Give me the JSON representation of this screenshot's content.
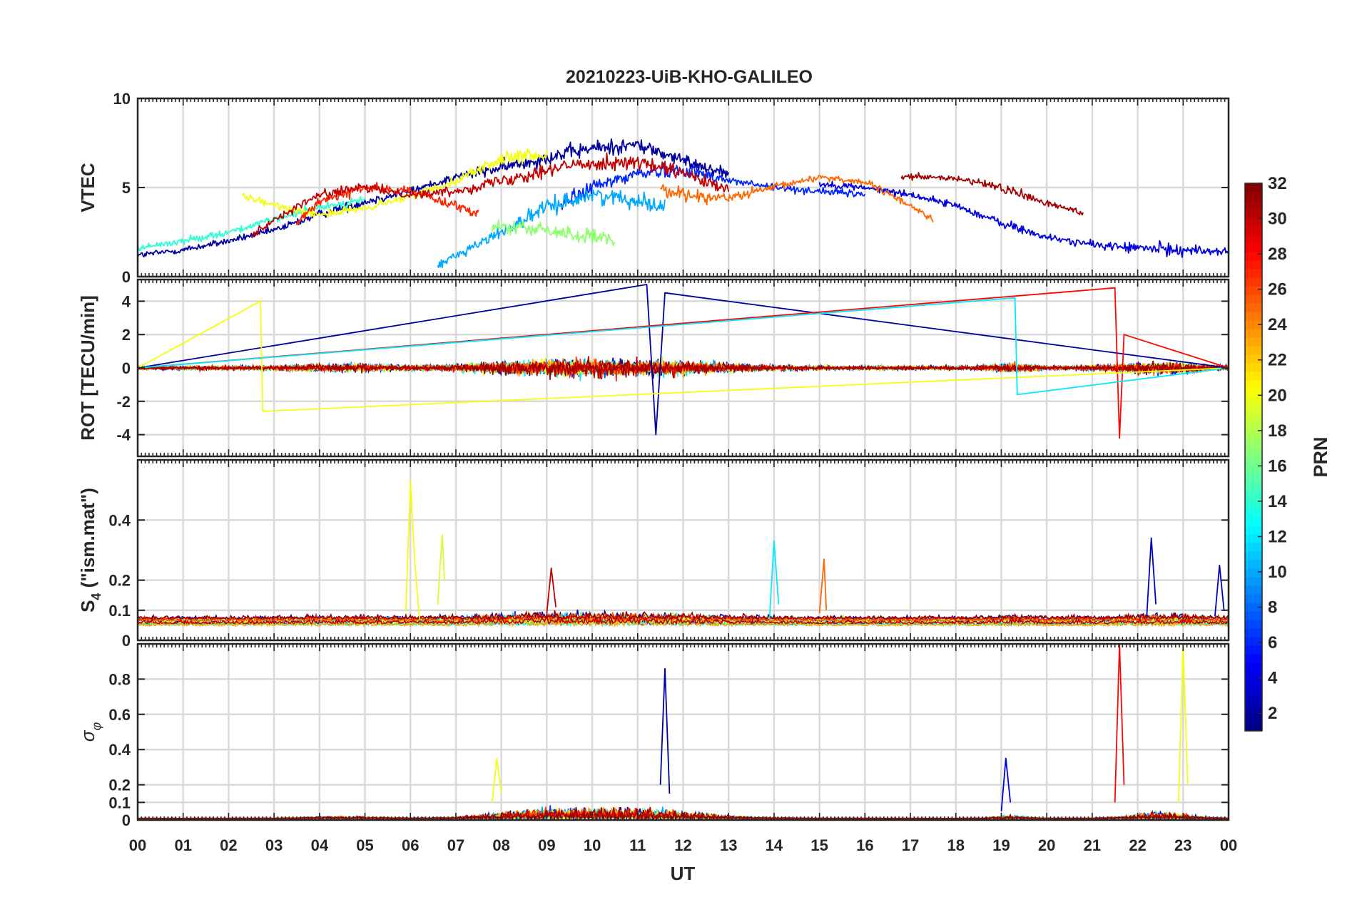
{
  "figure": {
    "title": "20210223-UiB-KHO-GALILEO",
    "xlabel": "UT",
    "x_tick_labels": [
      "00",
      "01",
      "02",
      "03",
      "04",
      "05",
      "06",
      "07",
      "08",
      "09",
      "10",
      "11",
      "12",
      "13",
      "14",
      "15",
      "16",
      "17",
      "18",
      "19",
      "20",
      "21",
      "22",
      "23",
      "00"
    ]
  },
  "colorbar": {
    "label": "PRN",
    "colormap": "jet",
    "range": [
      1,
      32
    ],
    "ticks": [
      2,
      4,
      6,
      8,
      10,
      12,
      14,
      16,
      18,
      20,
      22,
      24,
      26,
      28,
      30,
      32
    ],
    "tick_labels": [
      "2",
      "4",
      "6",
      "8",
      "10",
      "12",
      "14",
      "16",
      "18",
      "20",
      "22",
      "24",
      "26",
      "28",
      "30",
      "32"
    ]
  },
  "chart_data": [
    {
      "type": "line",
      "panel": "VTEC",
      "ylabel": "VTEC",
      "xlim": [
        0,
        24
      ],
      "ylim": [
        0,
        10
      ],
      "y_ticks": [
        0,
        5,
        10
      ],
      "y_tick_labels": [
        "0",
        "5",
        "10"
      ],
      "grid": true,
      "series": [
        {
          "prn": 2,
          "x": [
            0,
            1,
            2,
            3,
            4,
            5,
            6,
            7,
            8,
            9,
            10,
            11,
            12,
            13
          ],
          "y": [
            1.2,
            1.5,
            2.0,
            2.6,
            3.5,
            4.2,
            4.8,
            5.6,
            6.1,
            6.7,
            7.2,
            7.4,
            6.5,
            5.8
          ]
        },
        {
          "prn": 4,
          "x": [
            15,
            16,
            17,
            18,
            19,
            20,
            21,
            22,
            23,
            24
          ],
          "y": [
            5.2,
            5.0,
            4.6,
            4.0,
            3.0,
            2.2,
            1.8,
            1.6,
            1.5,
            1.4
          ]
        },
        {
          "prn": 6,
          "x": [
            9.3,
            10,
            11,
            12,
            13,
            14,
            15,
            16
          ],
          "y": [
            4.0,
            5.0,
            5.8,
            6.0,
            5.4,
            5.0,
            4.8,
            4.6
          ]
        },
        {
          "prn": 10,
          "x": [
            6.6,
            7,
            8,
            9,
            10,
            11,
            11.6
          ],
          "y": [
            0.6,
            1.2,
            2.5,
            3.9,
            4.6,
            4.3,
            3.9
          ]
        },
        {
          "prn": 14,
          "x": [
            0,
            1,
            2,
            3,
            4,
            5
          ],
          "y": [
            1.6,
            2.0,
            2.5,
            3.2,
            3.9,
            4.3
          ]
        },
        {
          "prn": 17,
          "x": [
            7.8,
            8.5,
            9,
            10,
            10.5
          ],
          "y": [
            2.8,
            2.7,
            2.6,
            2.2,
            2.0
          ]
        },
        {
          "prn": 20,
          "x": [
            2.3,
            3,
            4,
            5,
            6,
            7,
            8,
            9
          ],
          "y": [
            4.5,
            4.0,
            3.5,
            3.8,
            4.5,
            5.4,
            6.6,
            6.8
          ]
        },
        {
          "prn": 25,
          "x": [
            11.5,
            12,
            13,
            14,
            15,
            16,
            17,
            17.5
          ],
          "y": [
            5.0,
            4.6,
            4.4,
            5.0,
            5.6,
            5.3,
            4.0,
            3.2
          ]
        },
        {
          "prn": 27,
          "x": [
            3.5,
            4,
            5,
            6,
            7,
            7.5
          ],
          "y": [
            3.0,
            4.2,
            5.0,
            4.8,
            4.0,
            3.6
          ]
        },
        {
          "prn": 30,
          "x": [
            2.5,
            3,
            4,
            5,
            6,
            7,
            8,
            9,
            10,
            11,
            12,
            13
          ],
          "y": [
            2.3,
            3.2,
            4.6,
            5.0,
            4.6,
            4.8,
            5.4,
            6.0,
            6.4,
            6.4,
            5.8,
            4.8
          ]
        },
        {
          "prn": 31,
          "x": [
            16.8,
            17,
            18,
            19,
            20,
            20.8
          ],
          "y": [
            5.6,
            5.6,
            5.5,
            5.0,
            4.1,
            3.6
          ]
        }
      ]
    },
    {
      "type": "line",
      "panel": "ROT",
      "ylabel": "ROT [TECU/min]",
      "xlim": [
        0,
        24
      ],
      "ylim": [
        -5.3,
        5.3
      ],
      "y_ticks": [
        -4,
        -2,
        0,
        2,
        4
      ],
      "y_tick_labels": [
        "-4",
        "-2",
        "0",
        "2",
        "4"
      ],
      "grid": true,
      "series": [
        {
          "prn": 2,
          "x": [
            0,
            11.2,
            11.4,
            11.6,
            24
          ],
          "y": [
            0,
            5.0,
            -4.0,
            4.5,
            0
          ]
        },
        {
          "prn": 28,
          "x": [
            0,
            21.5,
            21.6,
            21.7,
            24
          ],
          "y": [
            0,
            4.8,
            -4.2,
            2.0,
            0
          ]
        },
        {
          "prn": 20,
          "x": [
            0,
            2.7,
            2.75,
            24
          ],
          "y": [
            0,
            4.0,
            -2.6,
            0
          ]
        },
        {
          "prn": 12,
          "x": [
            0,
            19.3,
            19.35,
            24
          ],
          "y": [
            0,
            4.2,
            -1.6,
            0
          ]
        }
      ]
    },
    {
      "type": "line",
      "panel": "S4",
      "ylabel": "S4 (\"ism.mat\")",
      "xlim": [
        0,
        24
      ],
      "ylim": [
        0,
        0.6
      ],
      "y_ticks": [
        0,
        0.1,
        0.2,
        0.4
      ],
      "y_tick_labels": [
        "0",
        "0.1",
        "0.2",
        "0.4"
      ],
      "grid": true,
      "series": [
        {
          "prn": 20,
          "x": [
            5.9,
            6.0,
            6.1,
            6.2
          ],
          "y": [
            0.1,
            0.53,
            0.25,
            0.07
          ]
        },
        {
          "prn": 19,
          "x": [
            6.6,
            6.7,
            6.75
          ],
          "y": [
            0.12,
            0.35,
            0.2
          ]
        },
        {
          "prn": 12,
          "x": [
            13.9,
            14.0,
            14.1
          ],
          "y": [
            0.07,
            0.33,
            0.12
          ]
        },
        {
          "prn": 25,
          "x": [
            15.0,
            15.1,
            15.15
          ],
          "y": [
            0.09,
            0.27,
            0.1
          ]
        },
        {
          "prn": 3,
          "x": [
            22.2,
            22.3,
            22.4
          ],
          "y": [
            0.08,
            0.34,
            0.12
          ]
        },
        {
          "prn": 3,
          "x": [
            23.7,
            23.8,
            23.9
          ],
          "y": [
            0.08,
            0.25,
            0.1
          ]
        },
        {
          "prn": 30,
          "x": [
            9.0,
            9.1,
            9.2
          ],
          "y": [
            0.09,
            0.24,
            0.11
          ]
        }
      ]
    },
    {
      "type": "line",
      "panel": "sigma_phi",
      "ylabel": "σ φ",
      "xlim": [
        0,
        24
      ],
      "ylim": [
        0,
        1
      ],
      "y_ticks": [
        0,
        0.1,
        0.2,
        0.4,
        0.6,
        0.8
      ],
      "y_tick_labels": [
        "0",
        "0.1",
        "0.2",
        "0.4",
        "0.6",
        "0.8"
      ],
      "grid": true,
      "series": [
        {
          "prn": 2,
          "x": [
            11.5,
            11.6,
            11.7
          ],
          "y": [
            0.2,
            0.86,
            0.15
          ]
        },
        {
          "prn": 28,
          "x": [
            21.5,
            21.6,
            21.7
          ],
          "y": [
            0.1,
            1.0,
            0.2
          ]
        },
        {
          "prn": 20,
          "x": [
            22.9,
            23.0,
            23.1
          ],
          "y": [
            0.1,
            1.0,
            0.2
          ]
        },
        {
          "prn": 4,
          "x": [
            19.0,
            19.1,
            19.2
          ],
          "y": [
            0.05,
            0.35,
            0.1
          ]
        },
        {
          "prn": 20,
          "x": [
            7.8,
            7.9,
            8.0
          ],
          "y": [
            0.1,
            0.35,
            0.15
          ]
        }
      ]
    }
  ]
}
